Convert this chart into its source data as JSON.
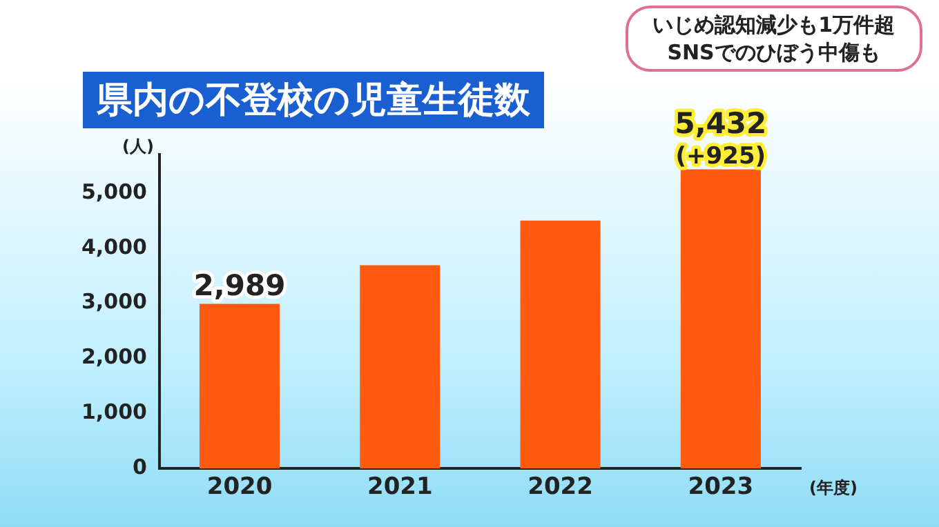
{
  "chart_data": {
    "type": "bar",
    "title": "県内の不登校の児童生徒数",
    "ylabel": "(人)",
    "xlabel": "(年度)",
    "categories": [
      "2020",
      "2021",
      "2022",
      "2023"
    ],
    "values": [
      2989,
      3690,
      4500,
      5432
    ],
    "value_labels": [
      "2,989",
      null,
      null,
      "5,432"
    ],
    "color": "#ff5a10",
    "ylim": [
      0,
      5700
    ],
    "yticks": [
      0,
      {
        "value": 1000,
        "label": "1,000"
      },
      {
        "value": 2000,
        "label": "2,000"
      },
      {
        "value": 3000,
        "label": "3,000"
      },
      {
        "value": 4000,
        "label": "4,000"
      },
      {
        "value": 5000,
        "label": "5,000"
      }
    ],
    "grid": false,
    "annotations": [
      {
        "text": "(+925)",
        "x": "2023",
        "y": 5432
      },
      "いじめ認知減少も1万件超",
      "SNSでのひぼう中傷も"
    ]
  }
}
